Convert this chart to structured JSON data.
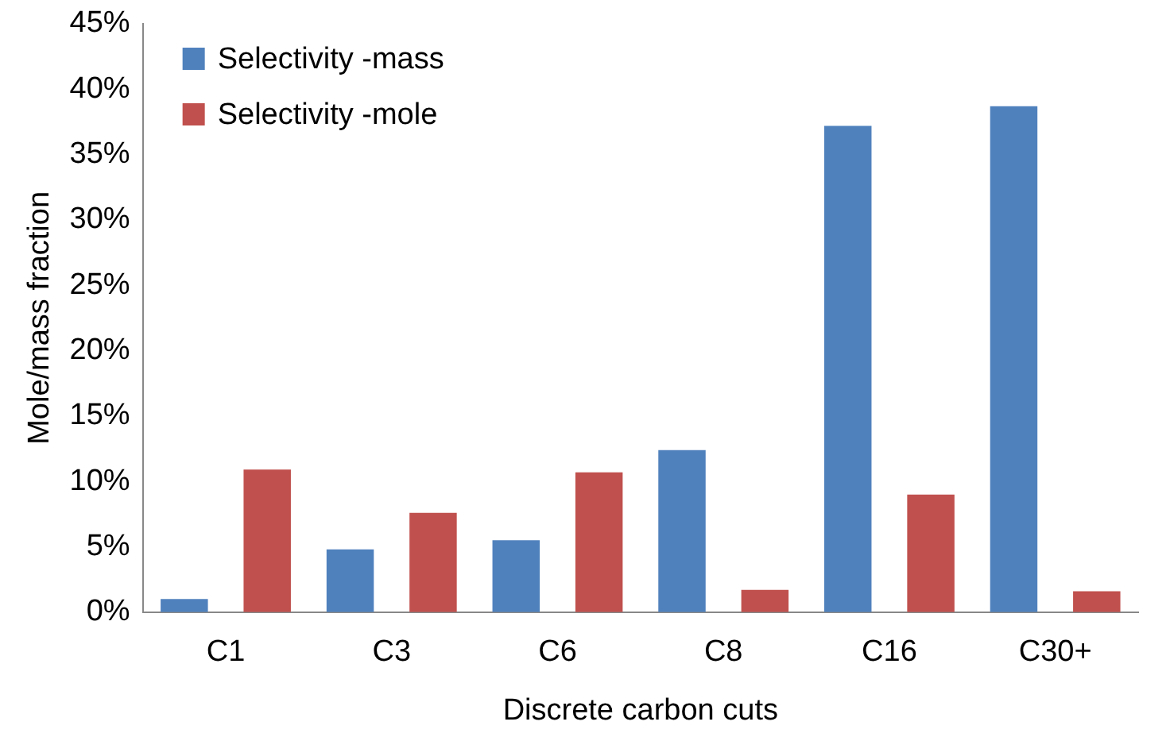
{
  "chart_data": {
    "type": "bar",
    "xlabel": "Discrete carbon cuts",
    "ylabel": "Mole/mass fraction",
    "categories": [
      "C1",
      "C3",
      "C6",
      "C8",
      "C16",
      "C30+"
    ],
    "series": [
      {
        "name": "Selectivity -mass",
        "color": "#4f81bd",
        "values": [
          1.0,
          4.8,
          5.5,
          12.4,
          37.2,
          38.7
        ]
      },
      {
        "name": "Selectivity -mole",
        "color": "#c0504d",
        "values": [
          10.9,
          7.6,
          10.7,
          1.7,
          9.0,
          1.6
        ]
      }
    ],
    "ylim": [
      0,
      45
    ],
    "yticks": [
      {
        "value": 0,
        "label": "0%"
      },
      {
        "value": 5,
        "label": "5%"
      },
      {
        "value": 10,
        "label": "10%"
      },
      {
        "value": 15,
        "label": "15%"
      },
      {
        "value": 20,
        "label": "20%"
      },
      {
        "value": 25,
        "label": "25%"
      },
      {
        "value": 30,
        "label": "30%"
      },
      {
        "value": 35,
        "label": "35%"
      },
      {
        "value": 40,
        "label": "40%"
      },
      {
        "value": 45,
        "label": "45%"
      }
    ],
    "grid": false,
    "legend": "top left"
  }
}
